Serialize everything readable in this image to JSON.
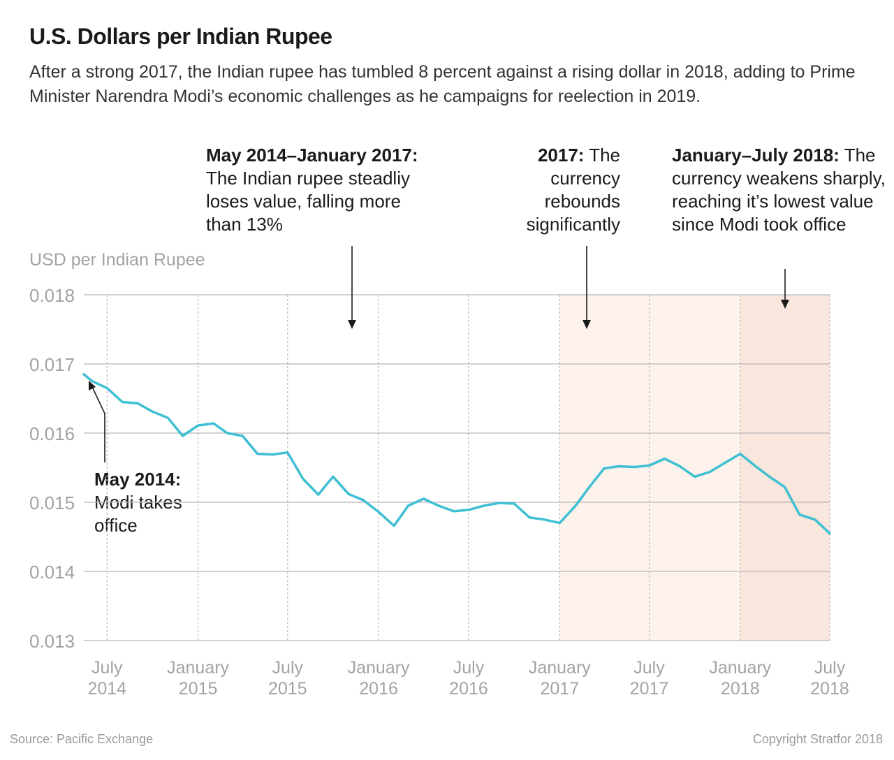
{
  "title": "U.S. Dollars per Indian Rupee",
  "subtitle": "After a strong 2017, the Indian rupee has tumbled 8 percent against a rising dollar in 2018, adding to Prime Minister Narendra Modi’s economic challenges as he campaigns for reelection in 2019.",
  "annotations": {
    "a1": {
      "bold": "May 2014–January 2017:",
      "text": " The Indian rupee steadliy loses value, falling more than 13%"
    },
    "a2": {
      "bold": "2017:",
      "text": " The currency rebounds significantly"
    },
    "a3": {
      "bold": "January–July 2018:",
      "text": " The currency weakens sharply, reaching it’s lowest value since Modi took office"
    },
    "a4": {
      "bold": "May 2014:",
      "text": " Modi takes office"
    }
  },
  "footer": {
    "source": "Source: Pacific Exchange",
    "copyright": "Copyright Stratfor 2018"
  },
  "colors": {
    "line": "#3fbfd3",
    "shade_light": "#fdf2ec",
    "shade_dark": "#f9e6dc",
    "grid": "#b8b8b8",
    "axis_text": "#a3a3a3"
  },
  "chart_data": {
    "type": "line",
    "title": "U.S. Dollars per Indian Rupee",
    "ylabel": "USD per Indian Rupee",
    "xlabel": "",
    "ylim": [
      0.013,
      0.018
    ],
    "yticks": [
      "0.013",
      "0.014",
      "0.015",
      "0.016",
      "0.017",
      "0.018"
    ],
    "xticks": [
      {
        "m1": "July",
        "m2": "2014",
        "date": "2014-07"
      },
      {
        "m1": "January",
        "m2": "2015",
        "date": "2015-01"
      },
      {
        "m1": "July",
        "m2": "2015",
        "date": "2015-07"
      },
      {
        "m1": "January",
        "m2": "2016",
        "date": "2016-01"
      },
      {
        "m1": "July",
        "m2": "2016",
        "date": "2016-07"
      },
      {
        "m1": "January",
        "m2": "2017",
        "date": "2017-01"
      },
      {
        "m1": "July",
        "m2": "2017",
        "date": "2017-07"
      },
      {
        "m1": "January",
        "m2": "2018",
        "date": "2018-01"
      },
      {
        "m1": "July",
        "m2": "2018",
        "date": "2018-07"
      }
    ],
    "shaded_periods": [
      {
        "from": "2017-01",
        "to": "2017-07",
        "shade": "light"
      },
      {
        "from": "2017-07",
        "to": "2018-01",
        "shade": "light"
      },
      {
        "from": "2018-01",
        "to": "2018-07",
        "shade": "dark"
      }
    ],
    "grid": true,
    "series": [
      {
        "values": [
          [
            "2014-05-15",
            0.01685
          ],
          [
            "2014-06-01",
            0.01675
          ],
          [
            "2014-07-01",
            0.01665
          ],
          [
            "2014-08-01",
            0.01645
          ],
          [
            "2014-09-01",
            0.01643
          ],
          [
            "2014-10-01",
            0.01631
          ],
          [
            "2014-11-01",
            0.01622
          ],
          [
            "2014-12-01",
            0.01596
          ],
          [
            "2015-01-01",
            0.01611
          ],
          [
            "2015-02-01",
            0.01614
          ],
          [
            "2015-03-01",
            0.016
          ],
          [
            "2015-04-01",
            0.01596
          ],
          [
            "2015-05-01",
            0.0157
          ],
          [
            "2015-06-01",
            0.01569
          ],
          [
            "2015-07-01",
            0.01572
          ],
          [
            "2015-08-01",
            0.01534
          ],
          [
            "2015-09-01",
            0.01511
          ],
          [
            "2015-10-01",
            0.01537
          ],
          [
            "2015-11-01",
            0.01512
          ],
          [
            "2015-12-01",
            0.01503
          ],
          [
            "2016-01-01",
            0.01486
          ],
          [
            "2016-02-01",
            0.01466
          ],
          [
            "2016-03-01",
            0.01495
          ],
          [
            "2016-04-01",
            0.01505
          ],
          [
            "2016-05-01",
            0.01495
          ],
          [
            "2016-06-01",
            0.01487
          ],
          [
            "2016-07-01",
            0.01489
          ],
          [
            "2016-08-01",
            0.01495
          ],
          [
            "2016-09-01",
            0.01499
          ],
          [
            "2016-10-01",
            0.01498
          ],
          [
            "2016-11-01",
            0.01478
          ],
          [
            "2016-12-01",
            0.01475
          ],
          [
            "2017-01-01",
            0.0147
          ],
          [
            "2017-02-01",
            0.01494
          ],
          [
            "2017-03-01",
            0.01521
          ],
          [
            "2017-04-01",
            0.01549
          ],
          [
            "2017-05-01",
            0.01552
          ],
          [
            "2017-06-01",
            0.01551
          ],
          [
            "2017-07-01",
            0.01553
          ],
          [
            "2017-08-01",
            0.01563
          ],
          [
            "2017-09-01",
            0.01552
          ],
          [
            "2017-10-01",
            0.01537
          ],
          [
            "2017-11-01",
            0.01544
          ],
          [
            "2017-12-01",
            0.01557
          ],
          [
            "2018-01-01",
            0.0157
          ],
          [
            "2018-02-01",
            0.01552
          ],
          [
            "2018-03-01",
            0.01537
          ],
          [
            "2018-04-01",
            0.01522
          ],
          [
            "2018-05-01",
            0.01482
          ],
          [
            "2018-06-01",
            0.01475
          ],
          [
            "2018-07-01",
            0.01455
          ]
        ]
      }
    ]
  }
}
